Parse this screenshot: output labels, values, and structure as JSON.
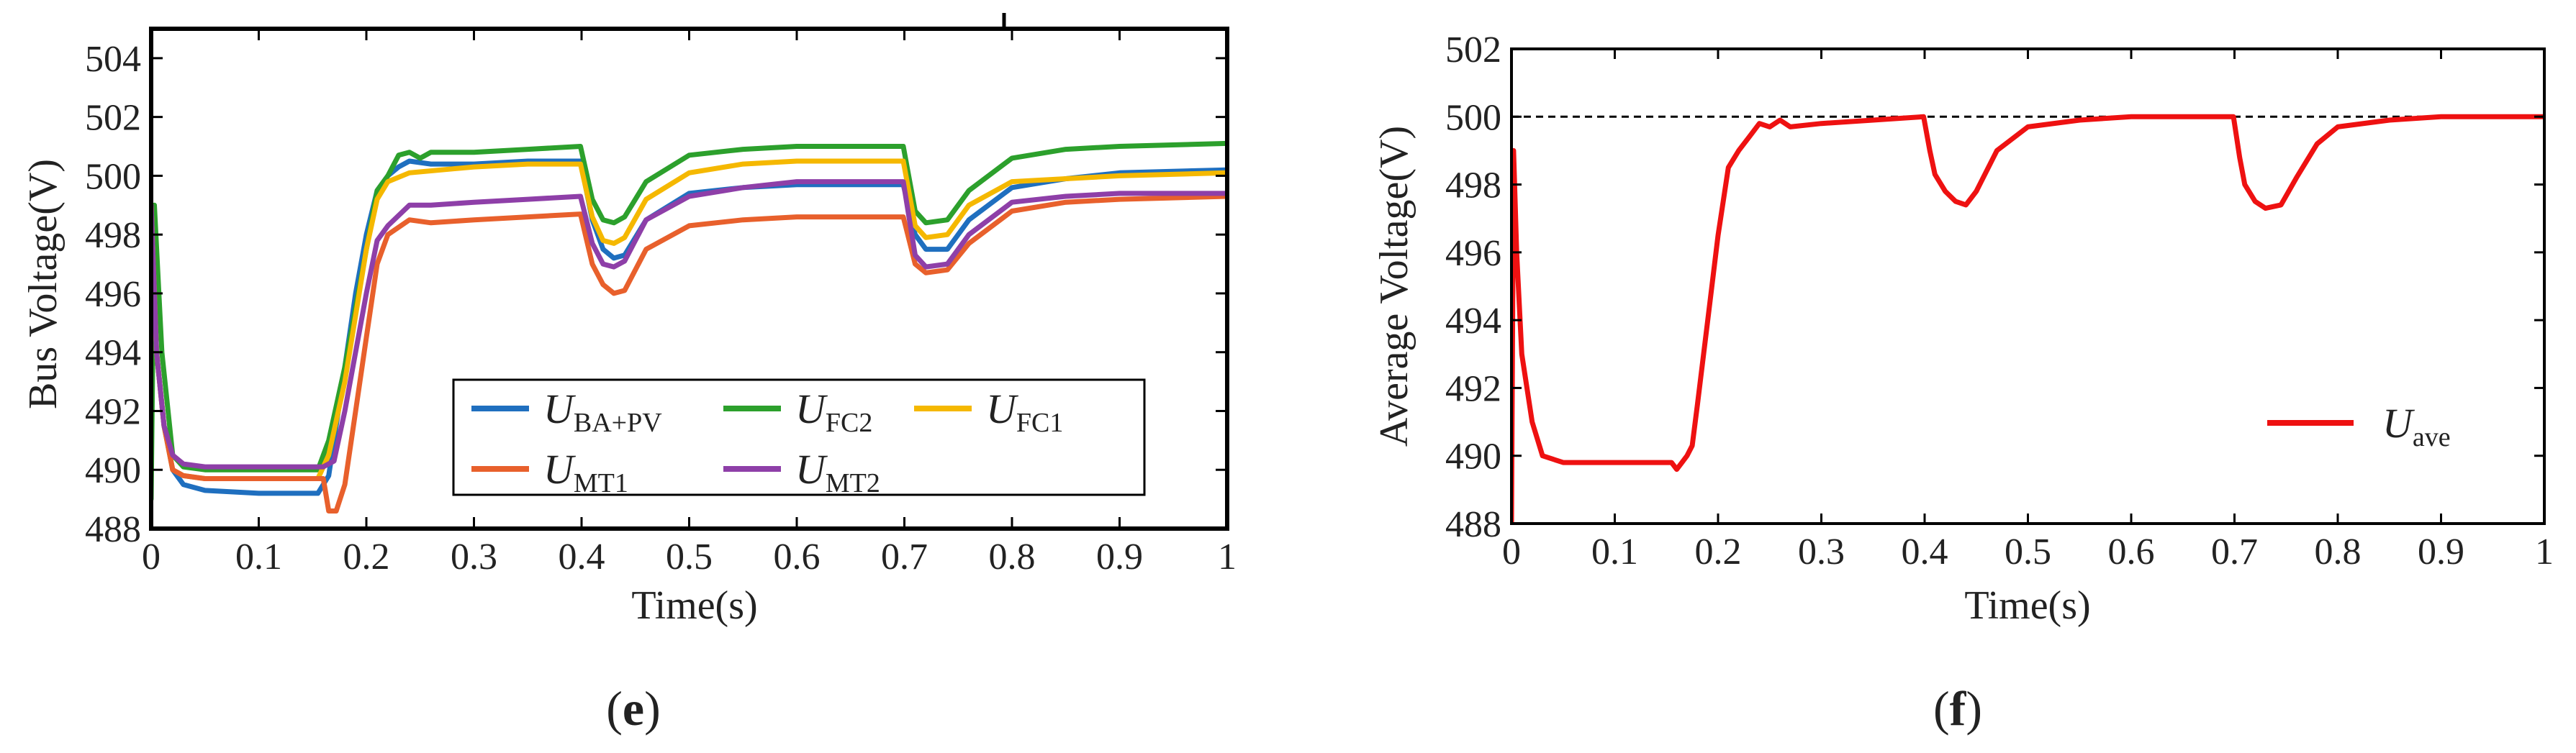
{
  "chart_data": [
    {
      "type": "line",
      "panel_label": "(e)",
      "xlabel": "Time(s)",
      "ylabel": "Bus Voltage(V)",
      "xlim": [
        0,
        1
      ],
      "ylim": [
        488,
        505
      ],
      "x_ticks": [
        "0",
        "0.1",
        "0.2",
        "0.3",
        "0.4",
        "0.5",
        "0.6",
        "0.7",
        "0.8",
        "0.9",
        "1"
      ],
      "y_ticks": [
        "488",
        "490",
        "492",
        "494",
        "496",
        "498",
        "500",
        "502",
        "504"
      ],
      "grid": false,
      "legend_position": "lower-right",
      "series": [
        {
          "name": "U",
          "subscript": "BA+PV",
          "color": "#1f6fbf",
          "points": [
            [
              0,
              499
            ],
            [
              0.005,
              494
            ],
            [
              0.012,
              491.5
            ],
            [
              0.02,
              490
            ],
            [
              0.03,
              489.5
            ],
            [
              0.05,
              489.3
            ],
            [
              0.1,
              489.2
            ],
            [
              0.155,
              489.2
            ],
            [
              0.165,
              489.8
            ],
            [
              0.17,
              491
            ],
            [
              0.18,
              493.5
            ],
            [
              0.19,
              496
            ],
            [
              0.2,
              498
            ],
            [
              0.21,
              499.5
            ],
            [
              0.22,
              500
            ],
            [
              0.23,
              500.3
            ],
            [
              0.24,
              500.5
            ],
            [
              0.26,
              500.4
            ],
            [
              0.3,
              500.4
            ],
            [
              0.35,
              500.5
            ],
            [
              0.399,
              500.5
            ],
            [
              0.41,
              498.5
            ],
            [
              0.42,
              497.5
            ],
            [
              0.43,
              497.2
            ],
            [
              0.44,
              497.3
            ],
            [
              0.46,
              498.5
            ],
            [
              0.5,
              499.4
            ],
            [
              0.55,
              499.6
            ],
            [
              0.6,
              499.7
            ],
            [
              0.699,
              499.7
            ],
            [
              0.71,
              498
            ],
            [
              0.72,
              497.5
            ],
            [
              0.74,
              497.5
            ],
            [
              0.76,
              498.5
            ],
            [
              0.8,
              499.6
            ],
            [
              0.85,
              499.9
            ],
            [
              0.9,
              500.1
            ],
            [
              1,
              500.2
            ]
          ]
        },
        {
          "name": "U",
          "subscript": "FC2",
          "color": "#2ca02c",
          "points": [
            [
              0,
              489
            ],
            [
              0.003,
              499
            ],
            [
              0.01,
              494
            ],
            [
              0.02,
              490.5
            ],
            [
              0.03,
              490.1
            ],
            [
              0.05,
              490
            ],
            [
              0.155,
              490
            ],
            [
              0.165,
              491
            ],
            [
              0.18,
              493.5
            ],
            [
              0.2,
              497.5
            ],
            [
              0.21,
              499.5
            ],
            [
              0.22,
              500
            ],
            [
              0.23,
              500.7
            ],
            [
              0.24,
              500.8
            ],
            [
              0.25,
              500.6
            ],
            [
              0.26,
              500.8
            ],
            [
              0.3,
              500.8
            ],
            [
              0.35,
              500.9
            ],
            [
              0.399,
              501
            ],
            [
              0.41,
              499.2
            ],
            [
              0.42,
              498.5
            ],
            [
              0.43,
              498.4
            ],
            [
              0.44,
              498.6
            ],
            [
              0.46,
              499.8
            ],
            [
              0.5,
              500.7
            ],
            [
              0.55,
              500.9
            ],
            [
              0.6,
              501
            ],
            [
              0.699,
              501
            ],
            [
              0.71,
              498.8
            ],
            [
              0.72,
              498.4
            ],
            [
              0.74,
              498.5
            ],
            [
              0.76,
              499.5
            ],
            [
              0.8,
              500.6
            ],
            [
              0.85,
              500.9
            ],
            [
              0.9,
              501
            ],
            [
              1,
              501.1
            ]
          ]
        },
        {
          "name": "U",
          "subscript": "FC1",
          "color": "#f5b800",
          "points": [
            [
              0,
              499
            ],
            [
              0.005,
              494
            ],
            [
              0.012,
              491.5
            ],
            [
              0.02,
              490
            ],
            [
              0.03,
              489.8
            ],
            [
              0.05,
              489.7
            ],
            [
              0.155,
              489.7
            ],
            [
              0.165,
              490.5
            ],
            [
              0.18,
              493
            ],
            [
              0.2,
              497.5
            ],
            [
              0.21,
              499.2
            ],
            [
              0.22,
              499.8
            ],
            [
              0.24,
              500.1
            ],
            [
              0.3,
              500.3
            ],
            [
              0.35,
              500.4
            ],
            [
              0.399,
              500.4
            ],
            [
              0.41,
              498.6
            ],
            [
              0.42,
              497.8
            ],
            [
              0.43,
              497.7
            ],
            [
              0.44,
              497.9
            ],
            [
              0.46,
              499.2
            ],
            [
              0.5,
              500.1
            ],
            [
              0.55,
              500.4
            ],
            [
              0.6,
              500.5
            ],
            [
              0.699,
              500.5
            ],
            [
              0.71,
              498.3
            ],
            [
              0.72,
              497.9
            ],
            [
              0.74,
              498
            ],
            [
              0.76,
              499
            ],
            [
              0.8,
              499.8
            ],
            [
              0.85,
              499.9
            ],
            [
              0.9,
              500
            ],
            [
              1,
              500.1
            ]
          ]
        },
        {
          "name": "U",
          "subscript": "MT1",
          "color": "#e8602c",
          "points": [
            [
              0,
              499
            ],
            [
              0.005,
              494
            ],
            [
              0.012,
              491.5
            ],
            [
              0.02,
              490
            ],
            [
              0.03,
              489.8
            ],
            [
              0.05,
              489.7
            ],
            [
              0.16,
              489.7
            ],
            [
              0.165,
              488.6
            ],
            [
              0.172,
              488.6
            ],
            [
              0.18,
              489.5
            ],
            [
              0.19,
              492
            ],
            [
              0.2,
              494.5
            ],
            [
              0.21,
              497
            ],
            [
              0.22,
              498
            ],
            [
              0.24,
              498.5
            ],
            [
              0.26,
              498.4
            ],
            [
              0.3,
              498.5
            ],
            [
              0.35,
              498.6
            ],
            [
              0.399,
              498.7
            ],
            [
              0.41,
              497
            ],
            [
              0.42,
              496.3
            ],
            [
              0.43,
              496
            ],
            [
              0.44,
              496.1
            ],
            [
              0.46,
              497.5
            ],
            [
              0.5,
              498.3
            ],
            [
              0.55,
              498.5
            ],
            [
              0.6,
              498.6
            ],
            [
              0.699,
              498.6
            ],
            [
              0.71,
              497
            ],
            [
              0.72,
              496.7
            ],
            [
              0.74,
              496.8
            ],
            [
              0.76,
              497.7
            ],
            [
              0.8,
              498.8
            ],
            [
              0.85,
              499.1
            ],
            [
              0.9,
              499.2
            ],
            [
              1,
              499.3
            ]
          ]
        },
        {
          "name": "U",
          "subscript": "MT2",
          "color": "#8e3fa8",
          "points": [
            [
              0,
              499
            ],
            [
              0.005,
              494
            ],
            [
              0.012,
              491.5
            ],
            [
              0.02,
              490.5
            ],
            [
              0.03,
              490.2
            ],
            [
              0.05,
              490.1
            ],
            [
              0.16,
              490.1
            ],
            [
              0.17,
              490.3
            ],
            [
              0.18,
              492
            ],
            [
              0.2,
              496
            ],
            [
              0.21,
              497.8
            ],
            [
              0.22,
              498.3
            ],
            [
              0.24,
              499
            ],
            [
              0.26,
              499
            ],
            [
              0.3,
              499.1
            ],
            [
              0.35,
              499.2
            ],
            [
              0.399,
              499.3
            ],
            [
              0.41,
              497.7
            ],
            [
              0.42,
              497
            ],
            [
              0.43,
              496.9
            ],
            [
              0.44,
              497.1
            ],
            [
              0.46,
              498.5
            ],
            [
              0.5,
              499.3
            ],
            [
              0.55,
              499.6
            ],
            [
              0.6,
              499.8
            ],
            [
              0.699,
              499.8
            ],
            [
              0.71,
              497.3
            ],
            [
              0.72,
              496.9
            ],
            [
              0.74,
              497
            ],
            [
              0.76,
              498
            ],
            [
              0.8,
              499.1
            ],
            [
              0.85,
              499.3
            ],
            [
              0.9,
              499.4
            ],
            [
              1,
              499.4
            ]
          ]
        }
      ]
    },
    {
      "type": "line",
      "panel_label": "(f)",
      "xlabel": "Time(s)",
      "ylabel": "Average Voltage(V)",
      "xlim": [
        0,
        1
      ],
      "ylim": [
        488,
        502
      ],
      "x_ticks": [
        "0",
        "0.1",
        "0.2",
        "0.3",
        "0.4",
        "0.5",
        "0.6",
        "0.7",
        "0.8",
        "0.9",
        "1"
      ],
      "y_ticks": [
        "488",
        "490",
        "492",
        "494",
        "496",
        "498",
        "500",
        "502"
      ],
      "grid": false,
      "legend_position": "lower-right",
      "reference_line": {
        "y": 500,
        "style": "dashed",
        "color": "#000000"
      },
      "series": [
        {
          "name": "U",
          "subscript": "ave",
          "color": "#ee1111",
          "points": [
            [
              0,
              488
            ],
            [
              0.002,
              499
            ],
            [
              0.005,
              496
            ],
            [
              0.01,
              493
            ],
            [
              0.02,
              491
            ],
            [
              0.03,
              490
            ],
            [
              0.05,
              489.8
            ],
            [
              0.1,
              489.8
            ],
            [
              0.155,
              489.8
            ],
            [
              0.16,
              489.6
            ],
            [
              0.165,
              489.8
            ],
            [
              0.17,
              490
            ],
            [
              0.175,
              490.3
            ],
            [
              0.18,
              491.5
            ],
            [
              0.19,
              494
            ],
            [
              0.2,
              496.5
            ],
            [
              0.21,
              498.5
            ],
            [
              0.22,
              499
            ],
            [
              0.23,
              499.4
            ],
            [
              0.24,
              499.8
            ],
            [
              0.25,
              499.7
            ],
            [
              0.26,
              499.9
            ],
            [
              0.27,
              499.7
            ],
            [
              0.3,
              499.8
            ],
            [
              0.35,
              499.9
            ],
            [
              0.399,
              500
            ],
            [
              0.405,
              499
            ],
            [
              0.41,
              498.3
            ],
            [
              0.42,
              497.8
            ],
            [
              0.43,
              497.5
            ],
            [
              0.44,
              497.4
            ],
            [
              0.45,
              497.8
            ],
            [
              0.47,
              499
            ],
            [
              0.5,
              499.7
            ],
            [
              0.55,
              499.9
            ],
            [
              0.6,
              500
            ],
            [
              0.699,
              500
            ],
            [
              0.705,
              498.8
            ],
            [
              0.71,
              498
            ],
            [
              0.72,
              497.5
            ],
            [
              0.73,
              497.3
            ],
            [
              0.745,
              497.4
            ],
            [
              0.76,
              498.2
            ],
            [
              0.78,
              499.2
            ],
            [
              0.8,
              499.7
            ],
            [
              0.85,
              499.9
            ],
            [
              0.9,
              500
            ],
            [
              1,
              500
            ]
          ]
        }
      ]
    }
  ]
}
